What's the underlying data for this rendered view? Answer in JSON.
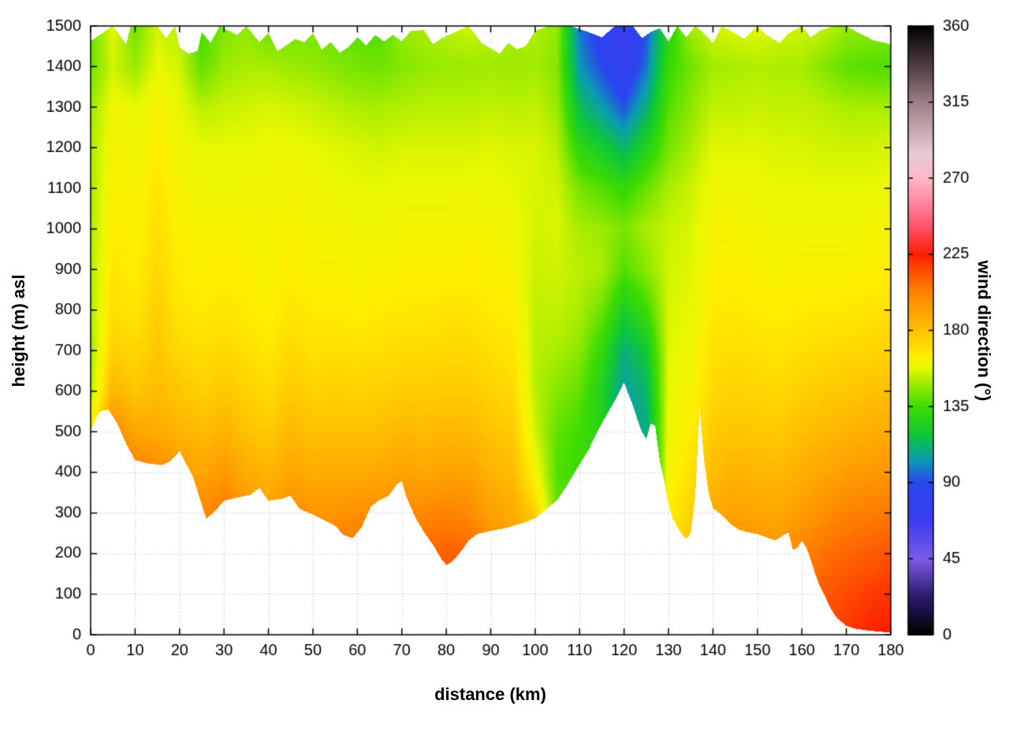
{
  "chart_data": {
    "type": "heatmap",
    "title": "",
    "xlabel": "distance (km)",
    "ylabel": "height (m) asl",
    "colorbar_label": "wind direction (°)",
    "x_range": [
      0,
      180
    ],
    "y_range": [
      0,
      1500
    ],
    "x_ticks": [
      0,
      10,
      20,
      30,
      40,
      50,
      60,
      70,
      80,
      90,
      100,
      110,
      120,
      130,
      140,
      150,
      160,
      170,
      180
    ],
    "y_ticks": [
      0,
      100,
      200,
      300,
      400,
      500,
      600,
      700,
      800,
      900,
      1000,
      1100,
      1200,
      1300,
      1400,
      1500
    ],
    "colorbar_range": [
      0,
      360
    ],
    "colorbar_ticks": [
      0,
      45,
      90,
      135,
      180,
      225,
      270,
      315,
      360
    ],
    "grid": "dotted",
    "palette": [
      [
        0,
        "#000000"
      ],
      [
        22,
        "#2a1a66"
      ],
      [
        45,
        "#7b5be6"
      ],
      [
        68,
        "#3a3cf2"
      ],
      [
        90,
        "#2a46ee"
      ],
      [
        103,
        "#0b9ab4"
      ],
      [
        118,
        "#0cc63c"
      ],
      [
        135,
        "#3ddc00"
      ],
      [
        148,
        "#9aea00"
      ],
      [
        158,
        "#e8f800"
      ],
      [
        165,
        "#ffee00"
      ],
      [
        175,
        "#ffd000"
      ],
      [
        185,
        "#ffb300"
      ],
      [
        195,
        "#ff9900"
      ],
      [
        205,
        "#ff7a00"
      ],
      [
        215,
        "#ff5000"
      ],
      [
        225,
        "#ff1e00"
      ],
      [
        240,
        "#ff4e63"
      ],
      [
        258,
        "#ff8fa8"
      ],
      [
        270,
        "#ffb7c5"
      ],
      [
        285,
        "#e8cbd4"
      ],
      [
        300,
        "#c4a4ab"
      ],
      [
        315,
        "#9a8186"
      ],
      [
        332,
        "#5f4b4e"
      ],
      [
        360,
        "#000000"
      ]
    ],
    "grid_x": [
      0,
      5,
      10,
      15,
      20,
      25,
      30,
      35,
      40,
      45,
      50,
      55,
      60,
      65,
      70,
      75,
      80,
      85,
      90,
      95,
      100,
      105,
      110,
      115,
      120,
      125,
      130,
      135,
      140,
      145,
      150,
      155,
      160,
      165,
      170,
      175,
      180
    ],
    "grid_y": [
      0,
      100,
      200,
      300,
      400,
      500,
      600,
      700,
      800,
      900,
      1000,
      1100,
      1200,
      1300,
      1400,
      1500
    ],
    "values": [
      [
        200,
        200,
        200,
        200,
        200,
        165,
        150,
        148,
        150,
        150,
        150,
        150,
        150,
        148,
        142,
        140
      ],
      [
        205,
        205,
        205,
        205,
        205,
        200,
        185,
        175,
        170,
        168,
        165,
        163,
        162,
        160,
        155,
        158
      ],
      [
        210,
        210,
        210,
        210,
        205,
        190,
        178,
        172,
        168,
        165,
        163,
        162,
        160,
        158,
        148,
        142
      ],
      [
        215,
        215,
        215,
        215,
        200,
        188,
        182,
        178,
        175,
        172,
        170,
        168,
        165,
        162,
        158,
        155
      ],
      [
        210,
        210,
        210,
        210,
        195,
        185,
        178,
        172,
        168,
        166,
        164,
        162,
        160,
        158,
        155,
        152
      ],
      [
        205,
        205,
        205,
        200,
        190,
        182,
        175,
        170,
        166,
        164,
        162,
        160,
        158,
        152,
        140,
        135
      ],
      [
        210,
        210,
        210,
        205,
        195,
        185,
        178,
        172,
        168,
        165,
        162,
        160,
        158,
        154,
        148,
        144
      ],
      [
        205,
        205,
        205,
        198,
        188,
        180,
        174,
        170,
        166,
        164,
        162,
        160,
        158,
        155,
        150,
        147
      ],
      [
        200,
        200,
        200,
        192,
        184,
        177,
        171,
        167,
        164,
        162,
        161,
        160,
        159,
        156,
        150,
        140
      ],
      [
        208,
        208,
        208,
        200,
        190,
        183,
        177,
        172,
        168,
        165,
        163,
        161,
        159,
        155,
        148,
        142
      ],
      [
        205,
        205,
        205,
        196,
        187,
        180,
        174,
        169,
        166,
        163,
        161,
        160,
        158,
        154,
        147,
        143
      ],
      [
        207,
        207,
        204,
        196,
        188,
        181,
        175,
        170,
        166,
        163,
        161,
        159,
        157,
        152,
        145,
        140
      ],
      [
        212,
        212,
        208,
        198,
        188,
        180,
        174,
        169,
        165,
        162,
        160,
        158,
        156,
        150,
        143,
        138
      ],
      [
        208,
        208,
        206,
        198,
        189,
        181,
        175,
        170,
        166,
        163,
        160,
        158,
        155,
        150,
        142,
        137
      ],
      [
        205,
        205,
        205,
        200,
        191,
        183,
        176,
        171,
        167,
        164,
        161,
        159,
        156,
        151,
        145,
        148
      ],
      [
        212,
        212,
        210,
        200,
        190,
        182,
        176,
        171,
        167,
        164,
        161,
        159,
        156,
        152,
        147,
        150
      ],
      [
        215,
        215,
        212,
        202,
        192,
        184,
        177,
        172,
        168,
        164,
        161,
        159,
        156,
        152,
        148,
        152
      ],
      [
        213,
        213,
        210,
        200,
        191,
        183,
        177,
        172,
        168,
        165,
        162,
        159,
        156,
        152,
        148,
        155
      ],
      [
        205,
        205,
        200,
        192,
        185,
        179,
        174,
        170,
        166,
        163,
        161,
        159,
        157,
        153,
        149,
        152
      ],
      [
        200,
        200,
        195,
        188,
        182,
        177,
        172,
        168,
        165,
        162,
        160,
        158,
        156,
        152,
        148,
        150
      ],
      [
        195,
        195,
        188,
        175,
        162,
        155,
        152,
        152,
        153,
        154,
        155,
        156,
        156,
        153,
        149,
        151
      ],
      [
        150,
        150,
        145,
        140,
        138,
        140,
        145,
        150,
        153,
        155,
        156,
        155,
        152,
        148,
        145,
        147
      ],
      [
        140,
        140,
        140,
        136,
        134,
        135,
        140,
        146,
        150,
        152,
        150,
        143,
        130,
        115,
        103,
        97
      ],
      [
        135,
        135,
        135,
        133,
        130,
        128,
        125,
        132,
        142,
        150,
        148,
        138,
        122,
        104,
        90,
        82
      ],
      [
        108,
        108,
        108,
        108,
        108,
        106,
        104,
        110,
        124,
        138,
        144,
        132,
        112,
        92,
        78,
        70
      ],
      [
        105,
        105,
        105,
        105,
        106,
        108,
        112,
        120,
        134,
        146,
        150,
        141,
        126,
        110,
        97,
        91
      ],
      [
        170,
        170,
        168,
        165,
        162,
        160,
        158,
        157,
        156,
        155,
        154,
        150,
        143,
        138,
        133,
        128
      ],
      [
        185,
        185,
        180,
        174,
        169,
        165,
        162,
        160,
        158,
        157,
        156,
        154,
        150,
        146,
        142,
        150
      ],
      [
        200,
        200,
        196,
        188,
        182,
        177,
        172,
        169,
        166,
        164,
        162,
        160,
        157,
        153,
        149,
        155
      ],
      [
        205,
        205,
        200,
        192,
        185,
        179,
        174,
        170,
        167,
        164,
        162,
        160,
        157,
        153,
        150,
        157
      ],
      [
        202,
        202,
        197,
        190,
        184,
        178,
        173,
        169,
        166,
        163,
        161,
        159,
        157,
        154,
        151,
        158
      ],
      [
        200,
        200,
        196,
        189,
        183,
        177,
        172,
        168,
        165,
        162,
        160,
        158,
        156,
        153,
        150,
        156
      ],
      [
        207,
        207,
        202,
        194,
        187,
        181,
        175,
        170,
        166,
        163,
        160,
        158,
        156,
        153,
        150,
        155
      ],
      [
        215,
        213,
        207,
        198,
        190,
        183,
        177,
        171,
        167,
        163,
        160,
        158,
        155,
        152,
        145,
        153
      ],
      [
        220,
        216,
        210,
        202,
        193,
        185,
        178,
        172,
        167,
        163,
        160,
        158,
        155,
        150,
        140,
        148
      ],
      [
        224,
        219,
        212,
        204,
        195,
        187,
        180,
        173,
        168,
        164,
        161,
        158,
        155,
        150,
        138,
        147
      ],
      [
        226,
        221,
        214,
        205,
        196,
        188,
        181,
        174,
        169,
        165,
        162,
        159,
        156,
        150,
        137,
        146
      ]
    ],
    "terrain": [
      [
        0,
        505
      ],
      [
        2,
        550
      ],
      [
        4,
        555
      ],
      [
        6,
        520
      ],
      [
        8,
        470
      ],
      [
        10,
        430
      ],
      [
        13,
        422
      ],
      [
        16,
        418
      ],
      [
        18,
        428
      ],
      [
        20,
        452
      ],
      [
        23,
        390
      ],
      [
        26,
        286
      ],
      [
        28,
        305
      ],
      [
        30,
        330
      ],
      [
        33,
        338
      ],
      [
        36,
        345
      ],
      [
        38,
        362
      ],
      [
        40,
        330
      ],
      [
        43,
        335
      ],
      [
        45,
        342
      ],
      [
        47,
        310
      ],
      [
        50,
        296
      ],
      [
        53,
        280
      ],
      [
        55,
        268
      ],
      [
        57,
        245
      ],
      [
        59,
        238
      ],
      [
        61,
        266
      ],
      [
        63,
        315
      ],
      [
        65,
        332
      ],
      [
        67,
        342
      ],
      [
        69,
        372
      ],
      [
        70,
        378
      ],
      [
        71,
        340
      ],
      [
        73,
        290
      ],
      [
        75,
        252
      ],
      [
        77,
        222
      ],
      [
        79,
        185
      ],
      [
        80,
        172
      ],
      [
        81,
        178
      ],
      [
        82,
        188
      ],
      [
        84,
        215
      ],
      [
        85,
        232
      ],
      [
        87,
        248
      ],
      [
        90,
        256
      ],
      [
        93,
        262
      ],
      [
        95,
        268
      ],
      [
        98,
        278
      ],
      [
        100,
        287
      ],
      [
        102,
        305
      ],
      [
        105,
        332
      ],
      [
        107,
        365
      ],
      [
        110,
        420
      ],
      [
        112,
        455
      ],
      [
        114,
        500
      ],
      [
        116,
        540
      ],
      [
        118,
        578
      ],
      [
        120,
        622
      ],
      [
        121,
        592
      ],
      [
        122,
        565
      ],
      [
        123,
        530
      ],
      [
        124,
        500
      ],
      [
        125,
        482
      ],
      [
        126,
        520
      ],
      [
        127,
        515
      ],
      [
        128,
        430
      ],
      [
        129,
        380
      ],
      [
        130,
        320
      ],
      [
        131,
        285
      ],
      [
        132,
        265
      ],
      [
        133,
        248
      ],
      [
        134,
        236
      ],
      [
        135,
        250
      ],
      [
        136,
        340
      ],
      [
        137,
        558
      ],
      [
        138,
        430
      ],
      [
        139,
        350
      ],
      [
        140,
        312
      ],
      [
        142,
        295
      ],
      [
        144,
        272
      ],
      [
        146,
        258
      ],
      [
        148,
        252
      ],
      [
        150,
        248
      ],
      [
        152,
        240
      ],
      [
        154,
        232
      ],
      [
        156,
        246
      ],
      [
        157,
        252
      ],
      [
        158,
        208
      ],
      [
        159,
        215
      ],
      [
        160,
        232
      ],
      [
        161,
        215
      ],
      [
        162,
        185
      ],
      [
        163,
        150
      ],
      [
        164,
        120
      ],
      [
        165,
        100
      ],
      [
        166,
        75
      ],
      [
        167,
        55
      ],
      [
        168,
        40
      ],
      [
        170,
        22
      ],
      [
        172,
        15
      ],
      [
        175,
        10
      ],
      [
        178,
        7
      ],
      [
        180,
        5
      ]
    ],
    "top_boundary": [
      [
        0,
        1462
      ],
      [
        2,
        1478
      ],
      [
        5,
        1500
      ],
      [
        8,
        1455
      ],
      [
        9,
        1500
      ],
      [
        15,
        1500
      ],
      [
        17,
        1470
      ],
      [
        19,
        1500
      ],
      [
        20,
        1447
      ],
      [
        22,
        1432
      ],
      [
        24,
        1438
      ],
      [
        25,
        1485
      ],
      [
        27,
        1458
      ],
      [
        29,
        1500
      ],
      [
        33,
        1478
      ],
      [
        35,
        1500
      ],
      [
        38,
        1460
      ],
      [
        40,
        1482
      ],
      [
        42,
        1438
      ],
      [
        44,
        1452
      ],
      [
        46,
        1468
      ],
      [
        48,
        1460
      ],
      [
        50,
        1482
      ],
      [
        52,
        1442
      ],
      [
        54,
        1460
      ],
      [
        56,
        1434
      ],
      [
        58,
        1448
      ],
      [
        60,
        1472
      ],
      [
        62,
        1452
      ],
      [
        64,
        1478
      ],
      [
        66,
        1462
      ],
      [
        68,
        1478
      ],
      [
        70,
        1462
      ],
      [
        72,
        1488
      ],
      [
        75,
        1490
      ],
      [
        77,
        1455
      ],
      [
        79,
        1470
      ],
      [
        82,
        1485
      ],
      [
        85,
        1500
      ],
      [
        88,
        1458
      ],
      [
        90,
        1445
      ],
      [
        92,
        1432
      ],
      [
        94,
        1458
      ],
      [
        96,
        1442
      ],
      [
        98,
        1452
      ],
      [
        100,
        1488
      ],
      [
        103,
        1500
      ],
      [
        108,
        1500
      ],
      [
        112,
        1485
      ],
      [
        115,
        1472
      ],
      [
        118,
        1500
      ],
      [
        122,
        1500
      ],
      [
        124,
        1470
      ],
      [
        126,
        1485
      ],
      [
        128,
        1495
      ],
      [
        130,
        1462
      ],
      [
        132,
        1500
      ],
      [
        134,
        1472
      ],
      [
        136,
        1500
      ],
      [
        138,
        1482
      ],
      [
        140,
        1458
      ],
      [
        142,
        1500
      ],
      [
        145,
        1482
      ],
      [
        147,
        1468
      ],
      [
        150,
        1500
      ],
      [
        152,
        1478
      ],
      [
        155,
        1458
      ],
      [
        157,
        1482
      ],
      [
        160,
        1500
      ],
      [
        162,
        1472
      ],
      [
        164,
        1488
      ],
      [
        167,
        1500
      ],
      [
        170,
        1500
      ],
      [
        173,
        1482
      ],
      [
        176,
        1465
      ],
      [
        180,
        1455
      ]
    ]
  }
}
